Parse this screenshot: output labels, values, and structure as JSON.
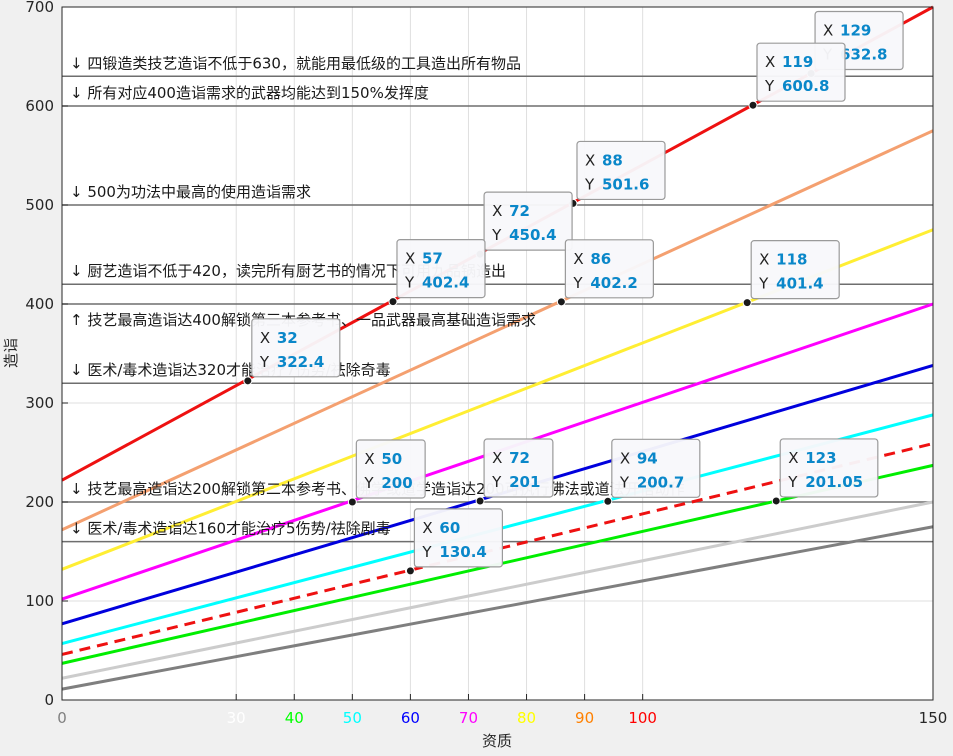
{
  "chart_data": {
    "type": "line",
    "xlabel": "资质",
    "ylabel": "造诣",
    "xlim": [
      0,
      150
    ],
    "ylim": [
      0,
      700
    ],
    "grid": true,
    "y_ticks": [
      "0",
      "100",
      "200",
      "300",
      "400",
      "500",
      "600",
      "700"
    ],
    "x_ticks": [
      {
        "label": "0",
        "x": 0,
        "color": "#808080"
      },
      {
        "label": "30",
        "x": 30,
        "color": "#ffffff"
      },
      {
        "label": "40",
        "x": 40,
        "color": "#00ff00"
      },
      {
        "label": "50",
        "x": 50,
        "color": "#00ffff"
      },
      {
        "label": "60",
        "x": 60,
        "color": "#0000ff"
      },
      {
        "label": "70",
        "x": 70,
        "color": "#ff00ff"
      },
      {
        "label": "80",
        "x": 80,
        "color": "#ffff00"
      },
      {
        "label": "90",
        "x": 90,
        "color": "#ff8000"
      },
      {
        "label": "100",
        "x": 100,
        "color": "#ff0000"
      },
      {
        "label": "150",
        "x": 150,
        "color": "#262626"
      }
    ],
    "series": [
      {
        "color": "#ee1111",
        "dash": false,
        "y0": 222,
        "y150": 700
      },
      {
        "color": "#f4a070",
        "dash": false,
        "y0": 172,
        "y150": 575
      },
      {
        "color": "#ffee33",
        "dash": false,
        "y0": 132,
        "y150": 475
      },
      {
        "color": "#ff00ff",
        "dash": false,
        "y0": 102,
        "y150": 400
      },
      {
        "color": "#0000dd",
        "dash": false,
        "y0": 77,
        "y150": 338
      },
      {
        "color": "#00ffff",
        "dash": false,
        "y0": 57,
        "y150": 288
      },
      {
        "color": "#ee1111",
        "dash": true,
        "y0": 46,
        "y150": 259
      },
      {
        "color": "#00ee00",
        "dash": false,
        "y0": 37,
        "y150": 237
      },
      {
        "color": "#cccccc",
        "dash": false,
        "y0": 22,
        "y150": 200
      },
      {
        "color": "#7f7f7f",
        "dash": false,
        "y0": 11,
        "y150": 175
      }
    ],
    "hlines": [
      {
        "y": 630,
        "label": "↓ 四锻造类技艺造诣不低于630，就能用最低级的工具造出所有物品",
        "above": true
      },
      {
        "y": 600,
        "label": "↓ 所有对应400造诣需求的武器均能达到150%发挥度",
        "above": true
      },
      {
        "y": 500,
        "label": "↓ 500为功法中最高的使用造诣需求",
        "above": true
      },
      {
        "y": 420,
        "label": "↓ 厨艺造诣不低于420，读完所有厨艺书的情况下可用九品锅造出",
        "above": true
      },
      {
        "y": 400,
        "label": "↑ 技艺最高造诣达400解锁第三本参考书、一品武器最高基础造诣需求",
        "above": false
      },
      {
        "y": 320,
        "label": "↓ 医术/毒术造诣达320才能治疗7伤势/祛除奇毒",
        "above": true
      },
      {
        "y": 200,
        "label": "↓ 技艺最高造诣达200解锁第二本参考书、佛学或道学造诣达200可执行佛法或道法开悟动作",
        "above": true
      },
      {
        "y": 160,
        "label": "↓ 医术/毒术造诣达160才能治疗5伤势/祛除剧毒",
        "above": true
      }
    ],
    "datatips": [
      {
        "x": 129,
        "y": 632.8,
        "x_label": "129",
        "y_label": "632.8"
      },
      {
        "x": 119,
        "y": 600.8,
        "x_label": "119",
        "y_label": "600.8"
      },
      {
        "x": 88,
        "y": 501.6,
        "x_label": "88",
        "y_label": "501.6"
      },
      {
        "x": 72,
        "y": 450.4,
        "x_label": "72",
        "y_label": "450.4"
      },
      {
        "x": 57,
        "y": 402.4,
        "x_label": "57",
        "y_label": "402.4"
      },
      {
        "x": 86,
        "y": 402.2,
        "x_label": "86",
        "y_label": "402.2"
      },
      {
        "x": 118,
        "y": 401.4,
        "x_label": "118",
        "y_label": "401.4"
      },
      {
        "x": 32,
        "y": 322.4,
        "x_label": "32",
        "y_label": "322.4"
      },
      {
        "x": 50,
        "y": 200,
        "x_label": "50",
        "y_label": "200"
      },
      {
        "x": 72,
        "y": 201,
        "x_label": "72",
        "y_label": "201"
      },
      {
        "x": 94,
        "y": 200.7,
        "x_label": "94",
        "y_label": "200.7"
      },
      {
        "x": 123,
        "y": 201.05,
        "x_label": "123",
        "y_label": "201.05"
      },
      {
        "x": 60,
        "y": 130.4,
        "x_label": "60",
        "y_label": "130.4"
      }
    ],
    "tip_key_x": "X",
    "tip_key_y": "Y"
  }
}
